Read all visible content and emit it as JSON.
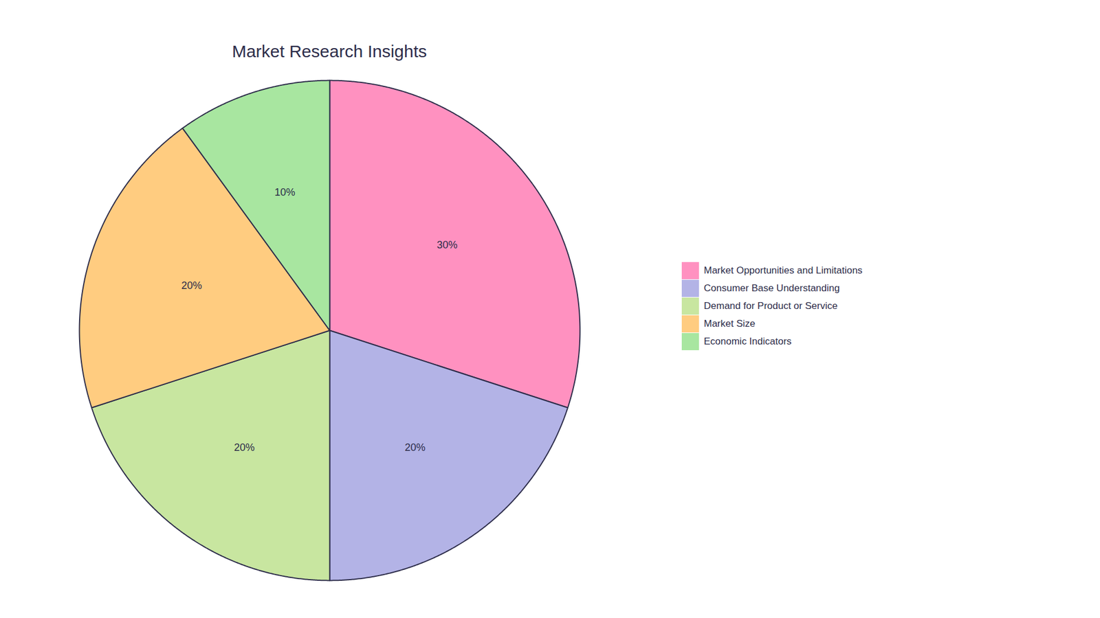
{
  "chart_data": {
    "type": "pie",
    "title": "Market Research Insights",
    "categories": [
      "Market Opportunities and Limitations",
      "Consumer Base Understanding",
      "Demand for Product or Service",
      "Market Size",
      "Economic Indicators"
    ],
    "values": [
      30,
      20,
      20,
      20,
      10
    ],
    "value_labels": [
      "30%",
      "20%",
      "20%",
      "20%",
      "10%"
    ],
    "colors": [
      "#FF91C0",
      "#B3B3E6",
      "#C8E6A0",
      "#FFCC80",
      "#A8E6A0"
    ],
    "data_labels": true,
    "legend": "right"
  }
}
